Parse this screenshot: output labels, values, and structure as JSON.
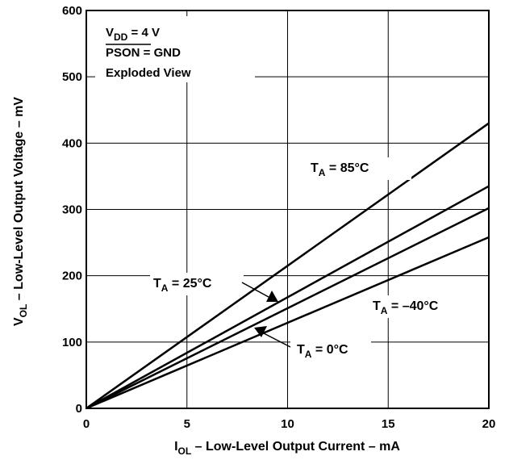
{
  "chart_data": {
    "type": "line",
    "xlabel": {
      "main": "I",
      "sub": "OL",
      "rest": " – Low-Level Output Current – mA"
    },
    "ylabel": {
      "main": "V",
      "sub": "OL",
      "rest": " – Low-Level Output Voltage – mV"
    },
    "xlim": [
      0,
      20
    ],
    "ylim": [
      0,
      600
    ],
    "xticks": [
      0,
      5,
      10,
      15,
      20
    ],
    "yticks": [
      0,
      100,
      200,
      300,
      400,
      500,
      600
    ],
    "grid": true,
    "conditions": [
      {
        "main": "V",
        "sub": "DD",
        "rest": " = 4 V"
      },
      {
        "main": "PSON",
        "sub": "",
        "rest": " = GND",
        "overline": true
      },
      {
        "main": "Exploded View",
        "sub": "",
        "rest": ""
      }
    ],
    "series": [
      {
        "name": "T_A = 85°C",
        "label": {
          "main": "T",
          "sub": "A",
          "rest": " = 85°C"
        },
        "x": [
          0,
          20
        ],
        "y": [
          0,
          430
        ]
      },
      {
        "name": "T_A = 25°C",
        "label": {
          "main": "T",
          "sub": "A",
          "rest": " = 25°C"
        },
        "x": [
          0,
          20
        ],
        "y": [
          0,
          335
        ]
      },
      {
        "name": "T_A = 0°C",
        "label": {
          "main": "T",
          "sub": "A",
          "rest": " = 0°C"
        },
        "x": [
          0,
          20
        ],
        "y": [
          0,
          302
        ]
      },
      {
        "name": "T_A = –40°C",
        "label": {
          "main": "T",
          "sub": "A",
          "rest": " = –40°C"
        },
        "x": [
          0,
          20
        ],
        "y": [
          0,
          258
        ]
      }
    ]
  }
}
